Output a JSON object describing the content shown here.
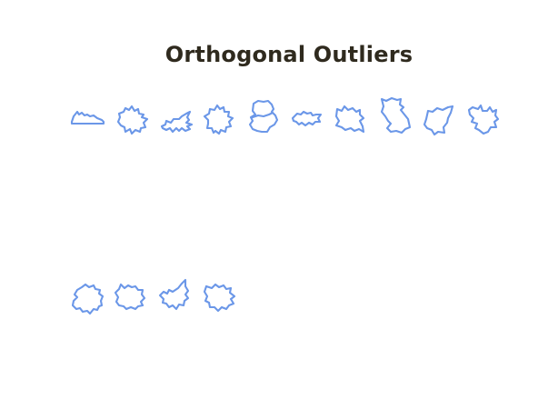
{
  "title": "Orthogonal Outliers",
  "colors": {
    "glyph_stroke": "#6b97e8",
    "title_text": "#2f2a1e",
    "background": "#ffffff"
  },
  "glyphs": [
    {
      "name": "shape-glyph-1"
    },
    {
      "name": "shape-glyph-2"
    },
    {
      "name": "shape-glyph-3"
    },
    {
      "name": "shape-glyph-4"
    },
    {
      "name": "shape-glyph-5"
    },
    {
      "name": "shape-glyph-6"
    },
    {
      "name": "shape-glyph-7"
    },
    {
      "name": "shape-glyph-8"
    },
    {
      "name": "shape-glyph-9"
    },
    {
      "name": "shape-glyph-10"
    },
    {
      "name": "shape-glyph-11"
    },
    {
      "name": "shape-glyph-12"
    },
    {
      "name": "shape-glyph-13"
    },
    {
      "name": "shape-glyph-14"
    }
  ]
}
